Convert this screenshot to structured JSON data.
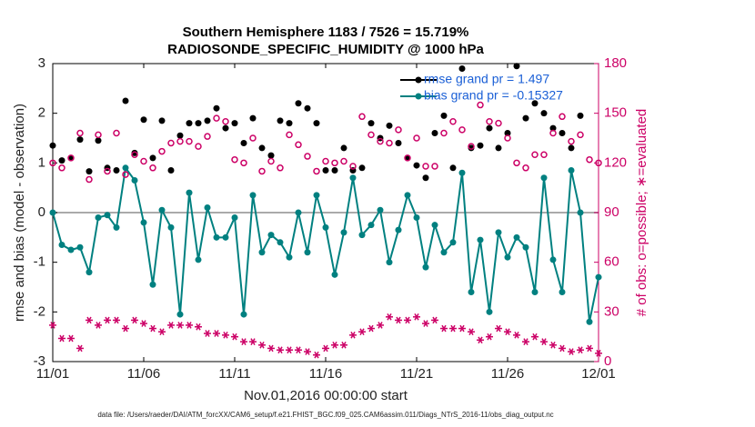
{
  "chart_data": {
    "type": "line",
    "title": [
      "Southern Hemisphere 1183 / 7526 = 15.719%",
      "RADIOSONDE_SPECIFIC_HUMIDITY @ 1000 hPa"
    ],
    "xlabel": "Nov.01,2016 00:00:00 start",
    "ylabel": "rmse and bias (model - observation)",
    "y2label": "# of obs: o=possible; ∗=evaluated",
    "footnote": "data file: /Users/raeder/DAI/ATM_forcXX/CAM6_setup/f.e21.FHIST_BGC.f09_025.CAM6assim.011/Diags_NTrS_2016-11/obs_diag_output.nc",
    "x": [
      0,
      0.5,
      1,
      1.5,
      2,
      2.5,
      3,
      3.5,
      4,
      4.5,
      5,
      5.5,
      6,
      6.5,
      7,
      7.5,
      8,
      8.5,
      9,
      9.5,
      10,
      10.5,
      11,
      11.5,
      12,
      12.5,
      13,
      13.5,
      14,
      14.5,
      15,
      15.5,
      16,
      16.5,
      17,
      17.5,
      18,
      18.5,
      19,
      19.5,
      20,
      20.5,
      21,
      21.5,
      22,
      22.5,
      23,
      23.5,
      24,
      24.5,
      25,
      25.5,
      26,
      26.5,
      27,
      27.5,
      28,
      28.5,
      29,
      29.5,
      30
    ],
    "xlim": [
      0,
      30
    ],
    "xticks": [
      {
        "value": 0,
        "label": "11/01"
      },
      {
        "value": 5,
        "label": "11/06"
      },
      {
        "value": 10,
        "label": "11/11"
      },
      {
        "value": 15,
        "label": "11/16"
      },
      {
        "value": 20,
        "label": "11/21"
      },
      {
        "value": 25,
        "label": "11/26"
      },
      {
        "value": 30,
        "label": "12/01"
      }
    ],
    "ylim": [
      -3,
      3
    ],
    "yticks": [
      -3,
      -2,
      -1,
      0,
      1,
      2,
      3
    ],
    "y2lim": [
      0,
      180
    ],
    "y2ticks": [
      0,
      30,
      60,
      90,
      120,
      150,
      180
    ],
    "legend": "upper right",
    "series": [
      {
        "name": "rmse grand pr = 1.497",
        "color": "#000000",
        "marker": "dot",
        "line": false,
        "in_legend": true,
        "values": [
          1.35,
          1.05,
          1.1,
          1.47,
          0.83,
          1.45,
          0.9,
          0.85,
          2.25,
          1.2,
          1.87,
          1.1,
          1.85,
          0.85,
          1.55,
          1.8,
          1.8,
          1.85,
          2.1,
          1.7,
          1.8,
          1.4,
          1.9,
          1.3,
          1.15,
          1.85,
          1.8,
          2.2,
          2.1,
          1.8,
          0.85,
          0.85,
          1.3,
          0.85,
          0.9,
          1.8,
          1.5,
          1.75,
          1.4,
          1.1,
          0.95,
          0.7,
          1.6,
          1.95,
          0.9,
          2.9,
          1.3,
          1.35,
          1.7,
          1.3,
          1.6,
          2.95,
          1.9,
          2.2,
          2.0,
          1.7,
          1.6,
          1.3,
          1.95,
          null,
          null
        ]
      },
      {
        "name": "bias grand pr = -0.15327",
        "color": "#008080",
        "marker": "dot",
        "line": true,
        "in_legend": true,
        "values": [
          0.0,
          -0.65,
          -0.75,
          -0.7,
          -1.2,
          -0.1,
          -0.05,
          -0.3,
          0.9,
          0.65,
          -0.2,
          -1.45,
          0.05,
          -0.3,
          -2.05,
          0.4,
          -0.95,
          0.1,
          -0.5,
          -0.5,
          -0.1,
          -2.05,
          0.35,
          -0.8,
          -0.45,
          -0.6,
          -0.9,
          0.0,
          -0.8,
          0.35,
          -0.3,
          -1.25,
          -0.4,
          0.7,
          -0.45,
          -0.25,
          0.05,
          -1.0,
          -0.35,
          0.35,
          -0.1,
          -1.1,
          -0.25,
          -0.8,
          -0.6,
          0.8,
          -1.6,
          -0.55,
          -2.0,
          -0.4,
          -0.9,
          -0.5,
          -0.7,
          -1.6,
          0.7,
          -0.95,
          -1.6,
          0.85,
          0.0,
          -2.2,
          -1.3
        ]
      },
      {
        "color": "#cc0066",
        "marker": "circle",
        "line": false,
        "axis": "y2",
        "in_legend": false,
        "values": [
          120,
          117,
          123,
          138,
          110,
          137,
          115,
          138,
          113,
          125,
          121,
          117,
          127,
          132,
          133,
          133,
          130,
          136,
          147,
          145,
          122,
          120,
          135,
          115,
          121,
          117,
          137,
          131,
          124,
          115,
          121,
          120,
          121,
          118,
          148,
          137,
          133,
          132,
          140,
          123,
          135,
          118,
          118,
          138,
          145,
          140,
          130,
          155,
          145,
          144,
          135,
          120,
          117,
          125,
          125,
          138,
          148,
          133,
          137,
          122,
          120
        ]
      },
      {
        "color": "#cc0066",
        "marker": "star",
        "line": false,
        "axis": "y2",
        "in_legend": false,
        "values": [
          22,
          14,
          14,
          8,
          25,
          22,
          25,
          25,
          20,
          25,
          23,
          20,
          18,
          22,
          22,
          22,
          21,
          17,
          17,
          16,
          15,
          12,
          12,
          10,
          8,
          7,
          7,
          7,
          6,
          4,
          8,
          10,
          10,
          16,
          18,
          20,
          22,
          27,
          25,
          25,
          27,
          23,
          25,
          20,
          20,
          20,
          18,
          13,
          15,
          20,
          18,
          16,
          12,
          15,
          12,
          10,
          8,
          6,
          7,
          8,
          5
        ]
      }
    ]
  }
}
